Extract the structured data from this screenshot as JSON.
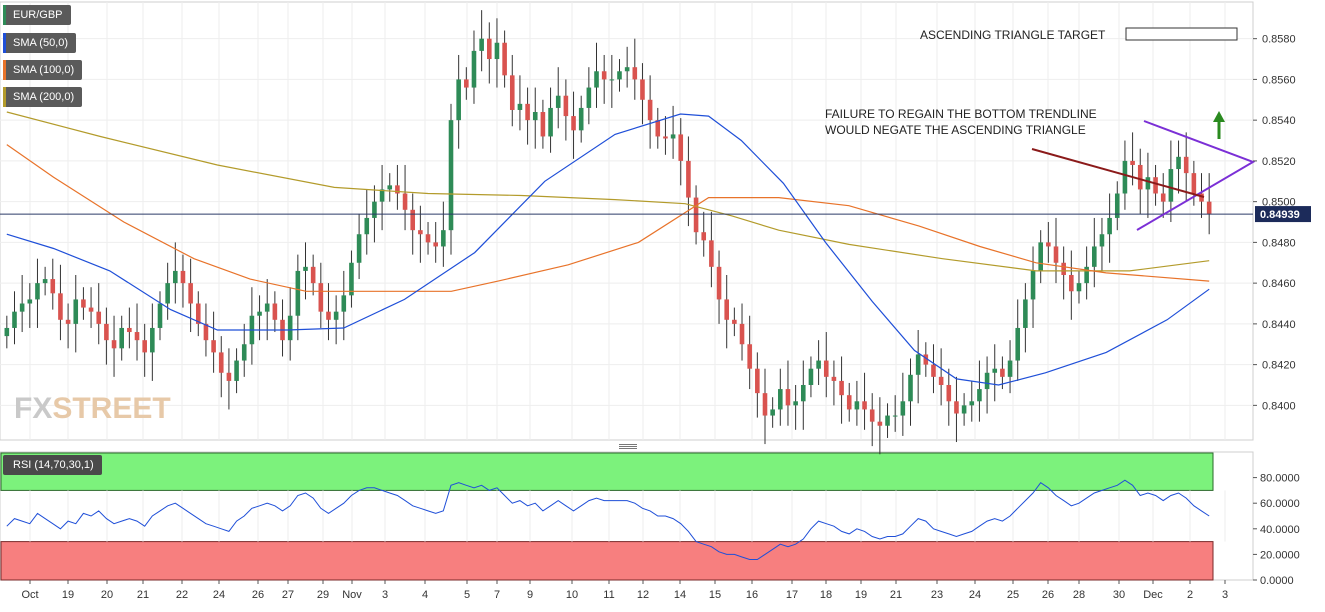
{
  "legend": {
    "symbol": "EUR/GBP",
    "sma50": "SMA (50,0)",
    "sma100": "SMA (100,0)",
    "sma200": "SMA (200,0)",
    "rsi": "RSI (14,70,30,1)"
  },
  "colors": {
    "up_candle": "#2e8b57",
    "down_candle": "#d9534f",
    "sma50": "#1f4fd8",
    "sma100": "#e8732a",
    "sma200": "#b39b2b",
    "triangle": "#7b2fd6",
    "trendline": "#8b1a1a",
    "arrow": "#2a8a1f",
    "rsi_line": "#1f4fd8",
    "overbought_zone": "#7cf27c",
    "oversold_zone": "#f77f7f"
  },
  "watermark": {
    "part1": "FX",
    "part2": "STREET"
  },
  "annotations": {
    "target_label": "ASCENDING TRIANGLE TARGET",
    "failure_line1": "FAILURE TO REGAIN THE BOTTOM TRENDLINE",
    "failure_line2": "WOULD NEGATE THE ASCENDING TRIANGLE"
  },
  "chart_data": {
    "type": "candlestick",
    "symbol": "EUR/GBP",
    "current_price": "0.84939",
    "ylim": [
      0.8383,
      0.8598
    ],
    "y_ticks": [
      "0.8580",
      "0.8560",
      "0.8540",
      "0.8520",
      "0.8500",
      "0.8480",
      "0.8460",
      "0.8440",
      "0.8420",
      "0.8400"
    ],
    "x_ticks": [
      "Oct",
      "19",
      "20",
      "21",
      "22",
      "24",
      "26",
      "27",
      "29",
      "Nov",
      "3",
      "4",
      "5",
      "7",
      "9",
      "10",
      "11",
      "12",
      "14",
      "15",
      "16",
      "17",
      "18",
      "19",
      "21",
      "23",
      "24",
      "25",
      "26",
      "28",
      "30",
      "Dec",
      "2",
      "3"
    ],
    "closes": [
      0.8438,
      0.8446,
      0.845,
      0.8452,
      0.846,
      0.8462,
      0.8455,
      0.8442,
      0.844,
      0.8452,
      0.8448,
      0.8446,
      0.844,
      0.8432,
      0.8428,
      0.8438,
      0.8436,
      0.8432,
      0.8426,
      0.8438,
      0.845,
      0.846,
      0.8466,
      0.846,
      0.845,
      0.844,
      0.8432,
      0.8426,
      0.8416,
      0.8412,
      0.8422,
      0.843,
      0.8444,
      0.8446,
      0.845,
      0.8442,
      0.8432,
      0.8444,
      0.8466,
      0.8468,
      0.846,
      0.8446,
      0.8442,
      0.8446,
      0.8454,
      0.847,
      0.8484,
      0.8492,
      0.85,
      0.8506,
      0.8508,
      0.8504,
      0.8496,
      0.8486,
      0.8484,
      0.848,
      0.8478,
      0.8486,
      0.854,
      0.856,
      0.8556,
      0.8574,
      0.858,
      0.857,
      0.8578,
      0.8562,
      0.8545,
      0.8548,
      0.854,
      0.8544,
      0.8532,
      0.8546,
      0.8552,
      0.8542,
      0.8535,
      0.8546,
      0.8556,
      0.8564,
      0.856,
      0.856,
      0.8564,
      0.8566,
      0.856,
      0.855,
      0.854,
      0.8532,
      0.8531,
      0.8533,
      0.852,
      0.8502,
      0.8485,
      0.8481,
      0.8468,
      0.8452,
      0.8442,
      0.844,
      0.843,
      0.8418,
      0.8406,
      0.8395,
      0.8398,
      0.8408,
      0.84,
      0.8402,
      0.841,
      0.8418,
      0.8422,
      0.8414,
      0.8412,
      0.8405,
      0.8398,
      0.8402,
      0.8398,
      0.8392,
      0.839,
      0.8395,
      0.8395,
      0.8402,
      0.8415,
      0.8425,
      0.842,
      0.8414,
      0.841,
      0.8402,
      0.8396,
      0.84,
      0.8402,
      0.8408,
      0.8416,
      0.8418,
      0.8414,
      0.8422,
      0.8438,
      0.8452,
      0.8466,
      0.848,
      0.8478,
      0.847,
      0.8464,
      0.8456,
      0.846,
      0.8468,
      0.8478,
      0.8484,
      0.8492,
      0.8504,
      0.852,
      0.8518,
      0.8506,
      0.8512,
      0.8504,
      0.85,
      0.8516,
      0.8522,
      0.8514,
      0.8504,
      0.85,
      0.8494
    ],
    "sma50": [
      [
        0,
        0.8484
      ],
      [
        10,
        0.8477
      ],
      [
        22,
        0.8466
      ],
      [
        35,
        0.8447
      ],
      [
        45,
        0.8437
      ],
      [
        60,
        0.8437
      ],
      [
        72,
        0.8438
      ],
      [
        85,
        0.8452
      ],
      [
        100,
        0.8475
      ],
      [
        115,
        0.851
      ],
      [
        130,
        0.8533
      ],
      [
        144,
        0.8543
      ],
      [
        150,
        0.8542
      ],
      [
        157,
        0.853
      ],
      [
        166,
        0.8509
      ],
      [
        175,
        0.848
      ],
      [
        185,
        0.8451
      ],
      [
        194,
        0.8427
      ],
      [
        203,
        0.8413
      ],
      [
        212,
        0.841
      ],
      [
        222,
        0.8416
      ],
      [
        235,
        0.8426
      ],
      [
        248,
        0.8442
      ],
      [
        257,
        0.8457
      ]
    ],
    "sma100": [
      [
        0,
        0.8528
      ],
      [
        10,
        0.8512
      ],
      [
        25,
        0.849
      ],
      [
        40,
        0.8472
      ],
      [
        52,
        0.8462
      ],
      [
        64,
        0.8456
      ],
      [
        78,
        0.8456
      ],
      [
        95,
        0.8456
      ],
      [
        105,
        0.8461
      ],
      [
        120,
        0.8469
      ],
      [
        135,
        0.848
      ],
      [
        150,
        0.8502
      ],
      [
        165,
        0.8502
      ],
      [
        180,
        0.8498
      ],
      [
        195,
        0.8488
      ],
      [
        208,
        0.8478
      ],
      [
        220,
        0.847
      ],
      [
        235,
        0.8465
      ],
      [
        257,
        0.8461
      ]
    ],
    "sma200": [
      [
        0,
        0.8544
      ],
      [
        20,
        0.8532
      ],
      [
        45,
        0.8518
      ],
      [
        70,
        0.8507
      ],
      [
        90,
        0.8504
      ],
      [
        110,
        0.8503
      ],
      [
        130,
        0.8501
      ],
      [
        145,
        0.8499
      ],
      [
        155,
        0.8493
      ],
      [
        165,
        0.8486
      ],
      [
        180,
        0.8479
      ],
      [
        200,
        0.8472
      ],
      [
        220,
        0.8466
      ],
      [
        240,
        0.8466
      ],
      [
        257,
        0.8471
      ]
    ],
    "rsi": {
      "ylim": [
        0,
        100
      ],
      "y_ticks": [
        "80.0000",
        "60.0000",
        "40.0000",
        "20.0000",
        "0.0000"
      ],
      "overbought": 70,
      "oversold": 30,
      "values": [
        42,
        48,
        46,
        44,
        52,
        48,
        44,
        40,
        46,
        44,
        52,
        50,
        54,
        48,
        44,
        46,
        48,
        46,
        42,
        50,
        54,
        58,
        60,
        56,
        52,
        48,
        44,
        42,
        40,
        38,
        46,
        50,
        56,
        58,
        60,
        58,
        54,
        58,
        66,
        68,
        64,
        56,
        52,
        56,
        60,
        66,
        70,
        72,
        72,
        70,
        68,
        66,
        62,
        58,
        56,
        54,
        52,
        54,
        74,
        76,
        74,
        72,
        74,
        70,
        72,
        66,
        60,
        62,
        58,
        60,
        54,
        58,
        62,
        58,
        54,
        58,
        62,
        64,
        62,
        62,
        62,
        62,
        60,
        56,
        54,
        50,
        50,
        48,
        44,
        38,
        30,
        28,
        26,
        22,
        20,
        20,
        18,
        16,
        16,
        20,
        24,
        28,
        26,
        28,
        32,
        40,
        46,
        44,
        42,
        38,
        36,
        40,
        38,
        34,
        32,
        34,
        34,
        36,
        42,
        48,
        46,
        40,
        38,
        36,
        34,
        36,
        38,
        42,
        46,
        48,
        46,
        50,
        56,
        62,
        68,
        76,
        72,
        66,
        62,
        58,
        60,
        64,
        68,
        70,
        72,
        74,
        78,
        74,
        66,
        68,
        66,
        62,
        66,
        68,
        64,
        58,
        54,
        50
      ]
    },
    "candle_count": 158
  }
}
